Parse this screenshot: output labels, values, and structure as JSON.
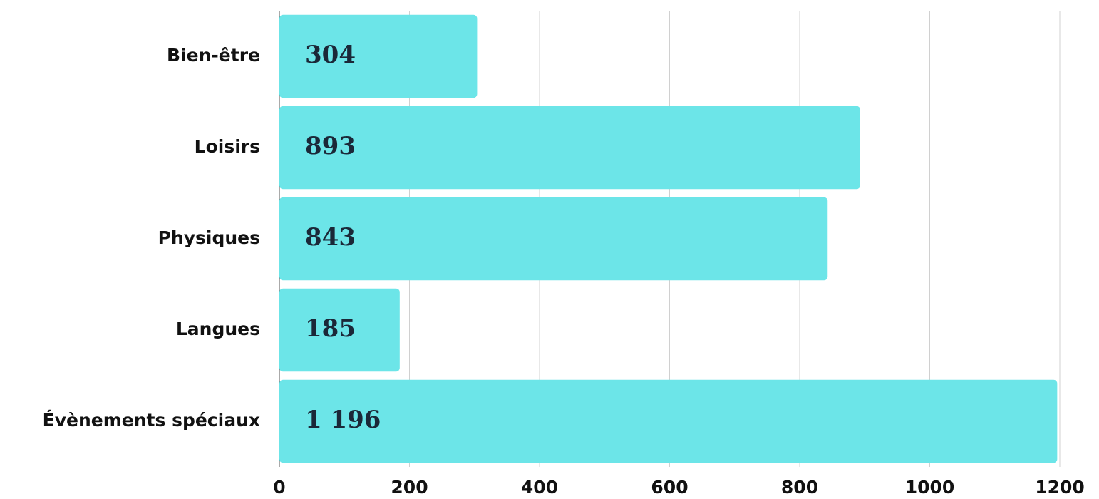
{
  "chart_data": {
    "type": "hbar",
    "categories": [
      "Bien-être",
      "Loisirs",
      "Physiques",
      "Langues",
      "Évènements spéciaux"
    ],
    "values": [
      304,
      893,
      843,
      185,
      1196
    ],
    "value_labels": [
      "304",
      "893",
      "843",
      "185",
      "1 196"
    ],
    "color": "#6ce5e8",
    "xlim": [
      0,
      1200
    ],
    "xticks": [
      0,
      200,
      400,
      600,
      800,
      1000,
      1200
    ],
    "grid": true
  }
}
